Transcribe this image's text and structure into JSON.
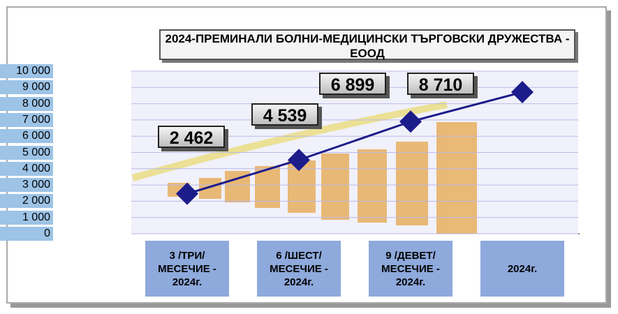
{
  "chart_data": {
    "type": "line",
    "title": "2024-ПРЕМИНАЛИ БОЛНИ-МЕДИЦИНСКИ ТЪРГОВСКИ ДРУЖЕСТВА - ЕООД",
    "categories": [
      "3 /ТРИ/ МЕСЕЧИЕ - 2024г.",
      "6 /ШЕСТ/ МЕСЕЧИЕ - 2024г.",
      "9 /ДЕВЕТ/ МЕСЕЧИЕ - 2024г.",
      "2024г."
    ],
    "values": [
      2462,
      4539,
      6899,
      8710
    ],
    "value_labels": [
      "2 462",
      "4 539",
      "6 899",
      "8 710"
    ],
    "color": "#1c1c8a",
    "ylim": [
      0,
      10000
    ],
    "yticks": [
      0,
      {
        "value": 1000,
        "label": "1 000"
      },
      {
        "value": 2000,
        "label": "2 000"
      },
      {
        "value": 3000,
        "label": "3 000"
      },
      {
        "value": 4000,
        "label": "4 000"
      },
      {
        "value": 5000,
        "label": "5 000"
      },
      {
        "value": 6000,
        "label": "6 000"
      },
      {
        "value": 7000,
        "label": "7 000"
      },
      {
        "value": 8000,
        "label": "8 000"
      },
      {
        "value": 9000,
        "label": "9 000"
      },
      {
        "value": 10000,
        "label": "10 000"
      }
    ],
    "grid": true
  }
}
